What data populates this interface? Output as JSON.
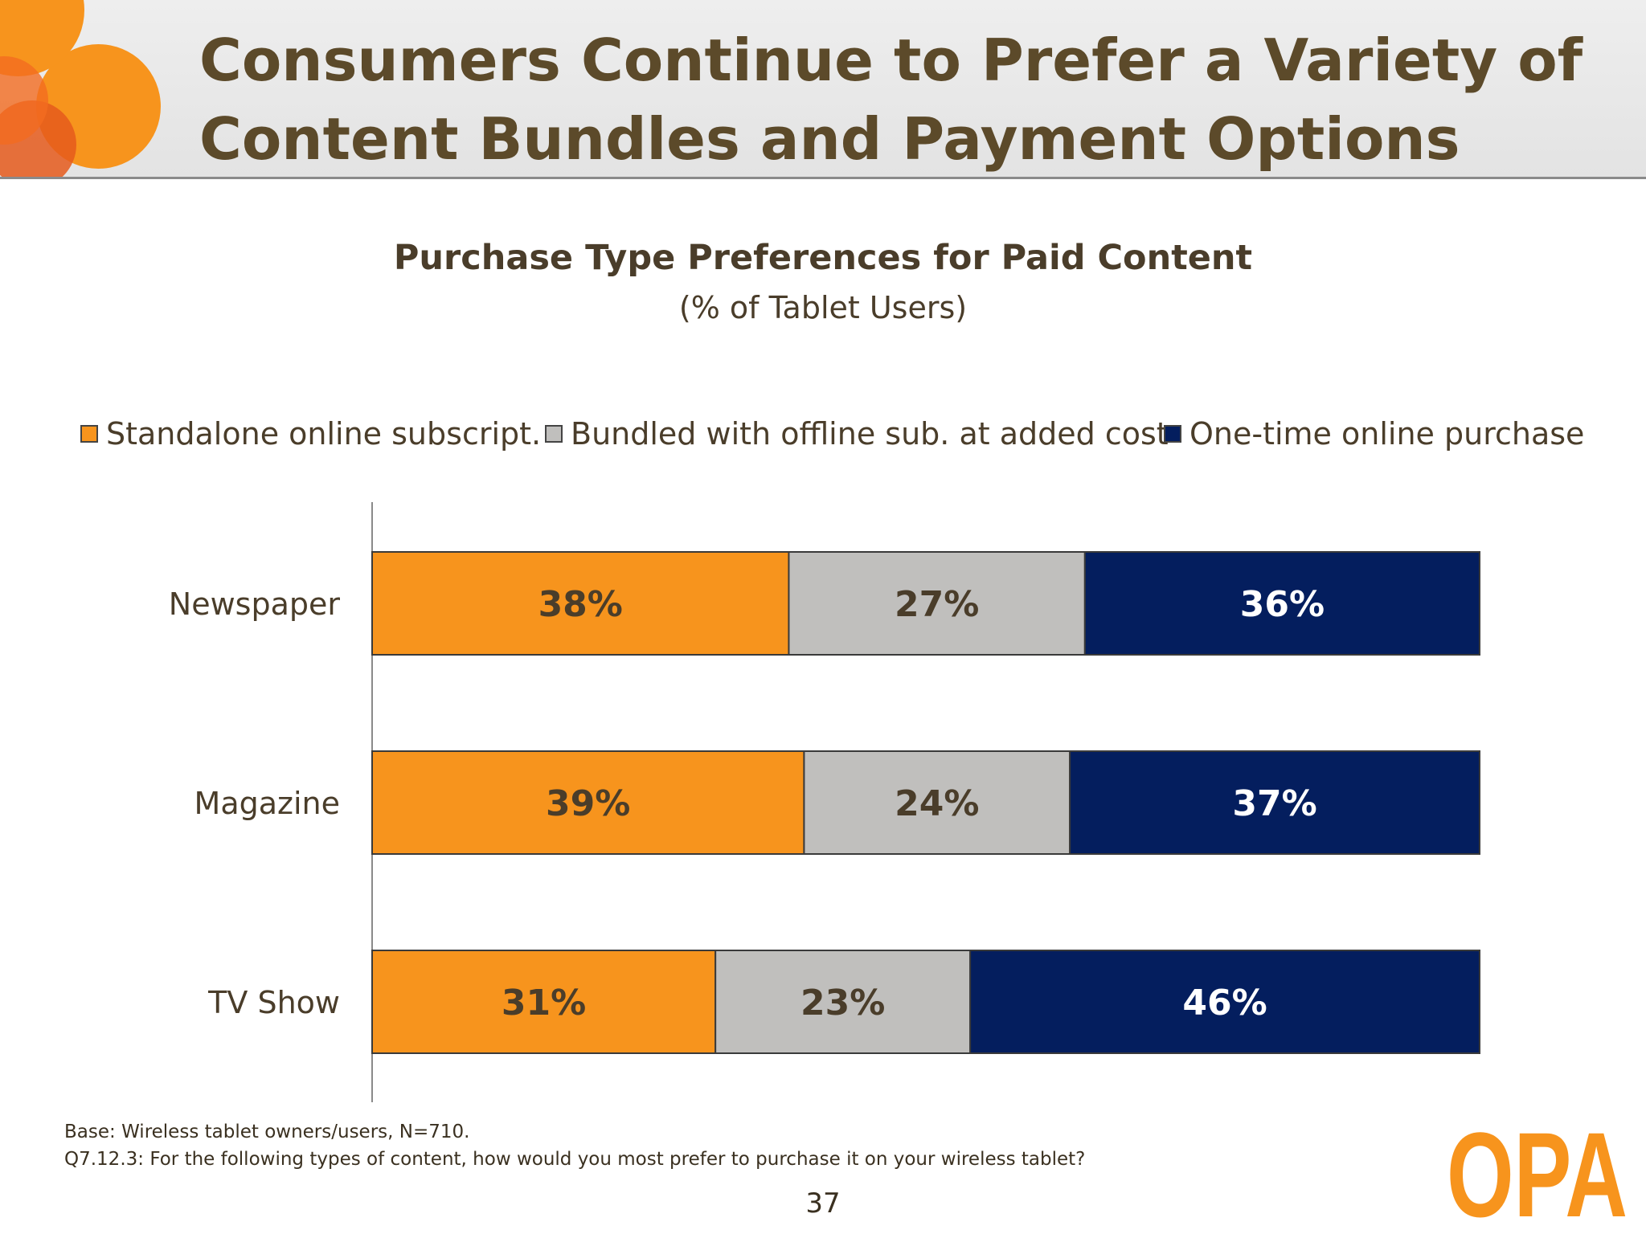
{
  "slide": {
    "title_line1": "Consumers Continue to Prefer a Variety of",
    "title_line2": "Content Bundles and Payment Options",
    "page_number": "37"
  },
  "footnotes": {
    "base": "Base:  Wireless tablet owners/users, N=710.",
    "question": "Q7.12.3:  For the following types of content, how would you most prefer to purchase it on your wireless tablet?"
  },
  "logo": {
    "text": "OPA",
    "color": "#f7941d"
  },
  "colors": {
    "orange": "#f7941d",
    "gray": "#c0bfbd",
    "navy": "#041e5e",
    "title_brown": "#5c4a2a"
  },
  "chart_data": {
    "type": "bar",
    "orientation": "horizontal",
    "stacked": true,
    "title": "Purchase Type Preferences for Paid Content",
    "subtitle": "(% of Tablet Users)",
    "categories": [
      "Newspaper",
      "Magazine",
      "TV Show"
    ],
    "series": [
      {
        "name": "Standalone online subscript.",
        "values": [
          38,
          39,
          31
        ],
        "labels": [
          "38%",
          "39%",
          "31%"
        ],
        "color": "#f7941d",
        "label_color": "#4a3d2a"
      },
      {
        "name": "Bundled with offline sub. at added cost",
        "values": [
          27,
          24,
          23
        ],
        "labels": [
          "27%",
          "24%",
          "23%"
        ],
        "color": "#c0bfbd",
        "label_color": "#4a3d2a"
      },
      {
        "name": "One-time online purchase",
        "values": [
          36,
          37,
          46
        ],
        "labels": [
          "36%",
          "37%",
          "46%"
        ],
        "color": "#041e5e",
        "label_color": "#ffffff"
      }
    ],
    "xlim": [
      0,
      100
    ],
    "grid": false,
    "legend_position": "top"
  }
}
